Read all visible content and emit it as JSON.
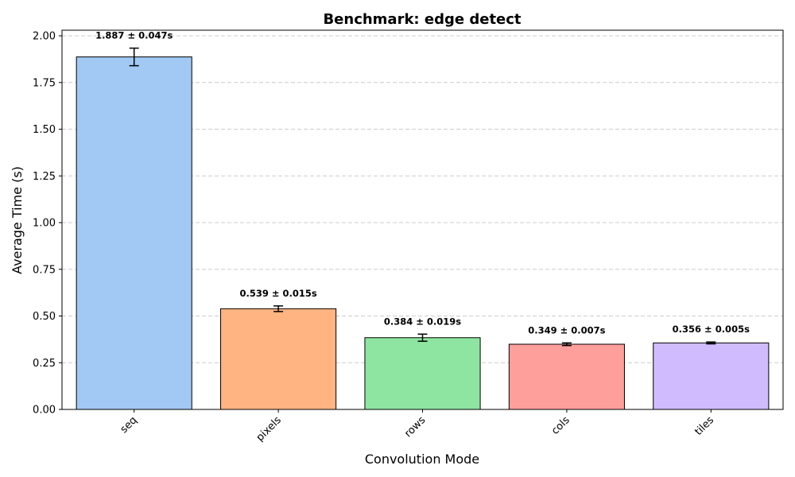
{
  "chart_data": {
    "type": "bar",
    "title": "Benchmark: edge detect",
    "xlabel": "Convolution Mode",
    "ylabel": "Average Time (s)",
    "ylim": [
      0,
      2.03
    ],
    "yticks": [
      "0.00",
      "0.25",
      "0.50",
      "0.75",
      "1.00",
      "1.25",
      "1.50",
      "1.75",
      "2.00"
    ],
    "grid": "horizontal dashed",
    "categories": [
      "seq",
      "pixels",
      "rows",
      "cols",
      "tiles"
    ],
    "values": [
      1.887,
      0.539,
      0.384,
      0.349,
      0.356
    ],
    "errors": [
      0.047,
      0.015,
      0.019,
      0.007,
      0.005
    ],
    "data_labels": [
      "1.887 ± 0.047s",
      "0.539 ± 0.015s",
      "0.384 ± 0.019s",
      "0.349 ± 0.007s",
      "0.356 ± 0.005s"
    ],
    "colors": [
      "#a1c9f4",
      "#ffb482",
      "#8de5a1",
      "#ff9f9b",
      "#d0bbff"
    ]
  }
}
